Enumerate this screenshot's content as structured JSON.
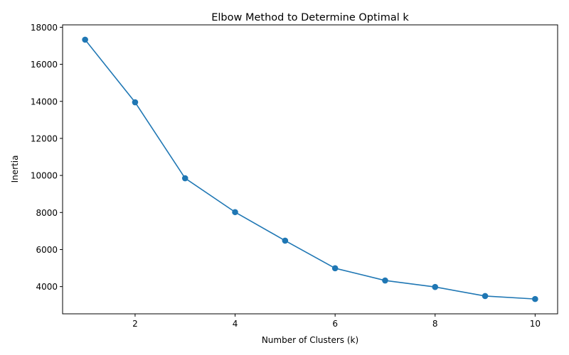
{
  "chart_data": {
    "type": "line",
    "title": "Elbow Method to Determine Optimal k",
    "xlabel": "Number of Clusters (k)",
    "ylabel": "Inertia",
    "x": [
      1,
      2,
      3,
      4,
      5,
      6,
      7,
      8,
      9,
      10
    ],
    "series": [
      {
        "values": [
          17330,
          13950,
          9850,
          8020,
          6480,
          4990,
          4330,
          3980,
          3490,
          3330
        ],
        "color": "#1f77b4",
        "marker": "circle"
      }
    ],
    "xlim": [
      0.55,
      10.45
    ],
    "ylim": [
      2530,
      18130
    ],
    "xticks": [
      2,
      4,
      6,
      8,
      10
    ],
    "xtick_labels": [
      "2",
      "4",
      "6",
      "8",
      "10"
    ],
    "yticks": [
      4000,
      6000,
      8000,
      10000,
      12000,
      14000,
      16000,
      18000
    ],
    "ytick_labels": [
      "4000",
      "6000",
      "8000",
      "10000",
      "12000",
      "14000",
      "16000",
      "18000"
    ],
    "grid": false,
    "legend": "none"
  }
}
